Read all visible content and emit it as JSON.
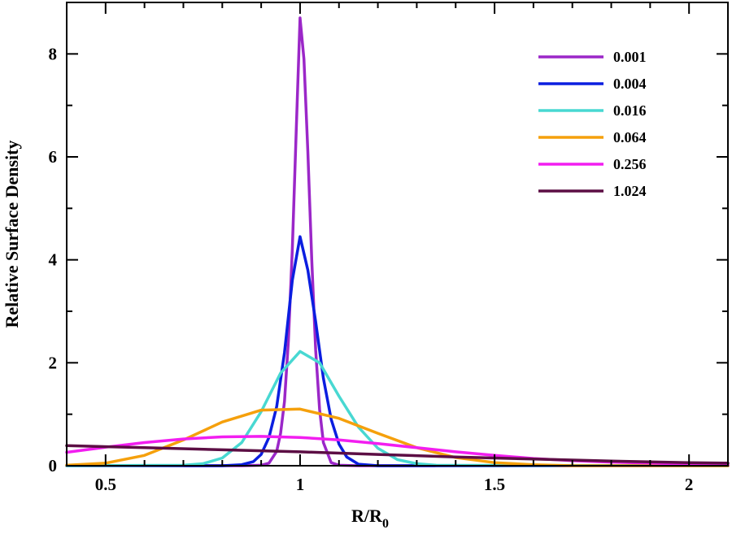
{
  "chart_data": {
    "type": "line",
    "xlabel": "R/R",
    "xlabel_sub": "0",
    "ylabel": "Relative Surface Density",
    "xlim": [
      0.4,
      2.1
    ],
    "ylim": [
      0,
      9
    ],
    "xticks": [
      0.5,
      1,
      1.5,
      2
    ],
    "xtick_labels": [
      "0.5",
      "1",
      "1.5",
      "2"
    ],
    "yticks": [
      0,
      2,
      4,
      6,
      8
    ],
    "ytick_labels": [
      "0",
      "2",
      "4",
      "6",
      "8"
    ],
    "grid": false,
    "legend_position": "top-right",
    "series": [
      {
        "name": "0.001",
        "color": "#9b27c8",
        "x": [
          0.4,
          0.85,
          0.9,
          0.92,
          0.94,
          0.95,
          0.96,
          0.97,
          0.98,
          0.99,
          1.0,
          1.01,
          1.02,
          1.03,
          1.04,
          1.05,
          1.06,
          1.08,
          1.1,
          1.15,
          2.1
        ],
        "y": [
          0.0,
          0.0,
          0.01,
          0.05,
          0.28,
          0.63,
          1.25,
          2.43,
          4.2,
          6.5,
          8.7,
          7.9,
          6.1,
          4.0,
          2.25,
          1.1,
          0.45,
          0.06,
          0.01,
          0.0,
          0.0
        ]
      },
      {
        "name": "0.004",
        "color": "#0b1ee0",
        "x": [
          0.4,
          0.8,
          0.85,
          0.88,
          0.9,
          0.92,
          0.94,
          0.96,
          0.98,
          1.0,
          1.02,
          1.04,
          1.06,
          1.08,
          1.1,
          1.12,
          1.15,
          1.2,
          2.1
        ],
        "y": [
          0.0,
          0.0,
          0.02,
          0.08,
          0.22,
          0.55,
          1.15,
          2.2,
          3.6,
          4.45,
          3.8,
          2.8,
          1.7,
          0.9,
          0.42,
          0.17,
          0.03,
          0.0,
          0.0
        ]
      },
      {
        "name": "0.016",
        "color": "#48d8d2",
        "x": [
          0.4,
          0.7,
          0.75,
          0.8,
          0.85,
          0.9,
          0.95,
          1.0,
          1.05,
          1.1,
          1.15,
          1.2,
          1.25,
          1.3,
          1.35,
          2.1
        ],
        "y": [
          0.0,
          0.01,
          0.04,
          0.15,
          0.45,
          1.05,
          1.8,
          2.22,
          2.0,
          1.35,
          0.75,
          0.34,
          0.12,
          0.04,
          0.01,
          0.0
        ]
      },
      {
        "name": "0.064",
        "color": "#f5a00c",
        "x": [
          0.4,
          0.5,
          0.6,
          0.7,
          0.8,
          0.9,
          1.0,
          1.1,
          1.2,
          1.3,
          1.4,
          1.5,
          1.6,
          1.7,
          2.1
        ],
        "y": [
          0.01,
          0.05,
          0.2,
          0.5,
          0.85,
          1.08,
          1.1,
          0.92,
          0.63,
          0.35,
          0.16,
          0.06,
          0.02,
          0.0,
          0.0
        ]
      },
      {
        "name": "0.256",
        "color": "#f21ef0",
        "x": [
          0.4,
          0.5,
          0.6,
          0.7,
          0.8,
          0.9,
          1.0,
          1.1,
          1.2,
          1.3,
          1.4,
          1.5,
          1.6,
          1.7,
          1.8,
          1.9,
          2.0,
          2.1
        ],
        "y": [
          0.26,
          0.36,
          0.45,
          0.52,
          0.56,
          0.57,
          0.55,
          0.5,
          0.43,
          0.35,
          0.27,
          0.2,
          0.14,
          0.1,
          0.07,
          0.05,
          0.03,
          0.02
        ]
      },
      {
        "name": "1.024",
        "color": "#5c0e44",
        "x": [
          0.4,
          0.6,
          0.8,
          1.0,
          1.2,
          1.4,
          1.6,
          1.8,
          2.0,
          2.1
        ],
        "y": [
          0.39,
          0.35,
          0.31,
          0.27,
          0.22,
          0.17,
          0.13,
          0.09,
          0.06,
          0.05
        ]
      }
    ]
  }
}
